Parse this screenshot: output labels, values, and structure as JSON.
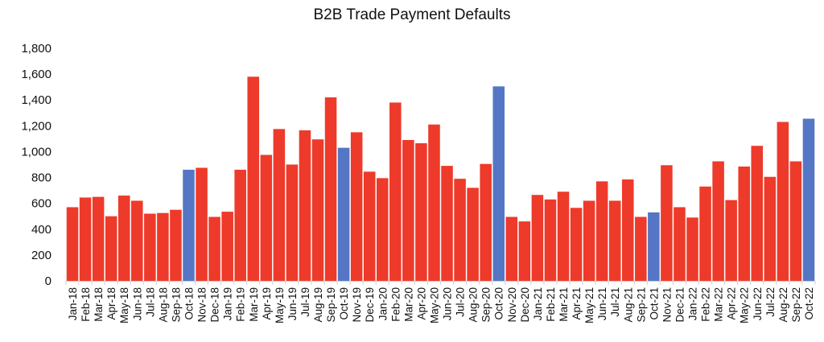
{
  "chart_data": {
    "type": "bar",
    "title": "B2B Trade Payment Defaults",
    "xlabel": "",
    "ylabel": "",
    "ylim": [
      0,
      1800
    ],
    "yticks": [
      0,
      200,
      400,
      600,
      800,
      1000,
      1200,
      1400,
      1600,
      1800
    ],
    "ytick_labels": [
      "0",
      "200",
      "400",
      "600",
      "800",
      "1,000",
      "1,200",
      "1,400",
      "1,600",
      "1,800"
    ],
    "grid": false,
    "legend": "none",
    "colors": {
      "default": "#ee3a2a",
      "highlight": "#5576c4"
    },
    "categories": [
      "Jan-18",
      "Feb-18",
      "Mar-18",
      "Apr-18",
      "May-18",
      "Jun-18",
      "Jul-18",
      "Aug-18",
      "Sep-18",
      "Oct-18",
      "Nov-18",
      "Dec-18",
      "Jan-19",
      "Feb-19",
      "Mar-19",
      "Apr-19",
      "May-19",
      "Jun-19",
      "Jul-19",
      "Aug-19",
      "Sep-19",
      "Oct-19",
      "Nov-19",
      "Dec-19",
      "Jan-20",
      "Feb-20",
      "Mar-20",
      "Apr-20",
      "May-20",
      "Jun-20",
      "Jul-20",
      "Aug-20",
      "Sep-20",
      "Oct-20",
      "Nov-20",
      "Dec-20",
      "Jan-21",
      "Feb-21",
      "Mar-21",
      "Apr-21",
      "May-21",
      "Jun-21",
      "Jul-21",
      "Aug-21",
      "Sep-21",
      "Oct-21",
      "Nov-21",
      "Dec-21",
      "Jan-22",
      "Feb-22",
      "Mar-22",
      "Apr-22",
      "May-22",
      "Jun-22",
      "Jul-22",
      "Aug-22",
      "Sep-22",
      "Oct-22"
    ],
    "values": [
      570,
      645,
      650,
      500,
      660,
      620,
      520,
      525,
      550,
      860,
      875,
      495,
      535,
      860,
      1580,
      975,
      1175,
      900,
      1165,
      1095,
      1420,
      1030,
      1150,
      845,
      795,
      1380,
      1090,
      1065,
      1210,
      890,
      790,
      720,
      905,
      1505,
      495,
      460,
      665,
      630,
      690,
      565,
      620,
      770,
      620,
      785,
      495,
      530,
      895,
      570,
      490,
      730,
      925,
      625,
      885,
      1045,
      805,
      1230,
      925,
      1255
    ],
    "highlight_categories": [
      "Oct-18",
      "Oct-19",
      "Oct-20",
      "Oct-21",
      "Oct-22"
    ]
  }
}
